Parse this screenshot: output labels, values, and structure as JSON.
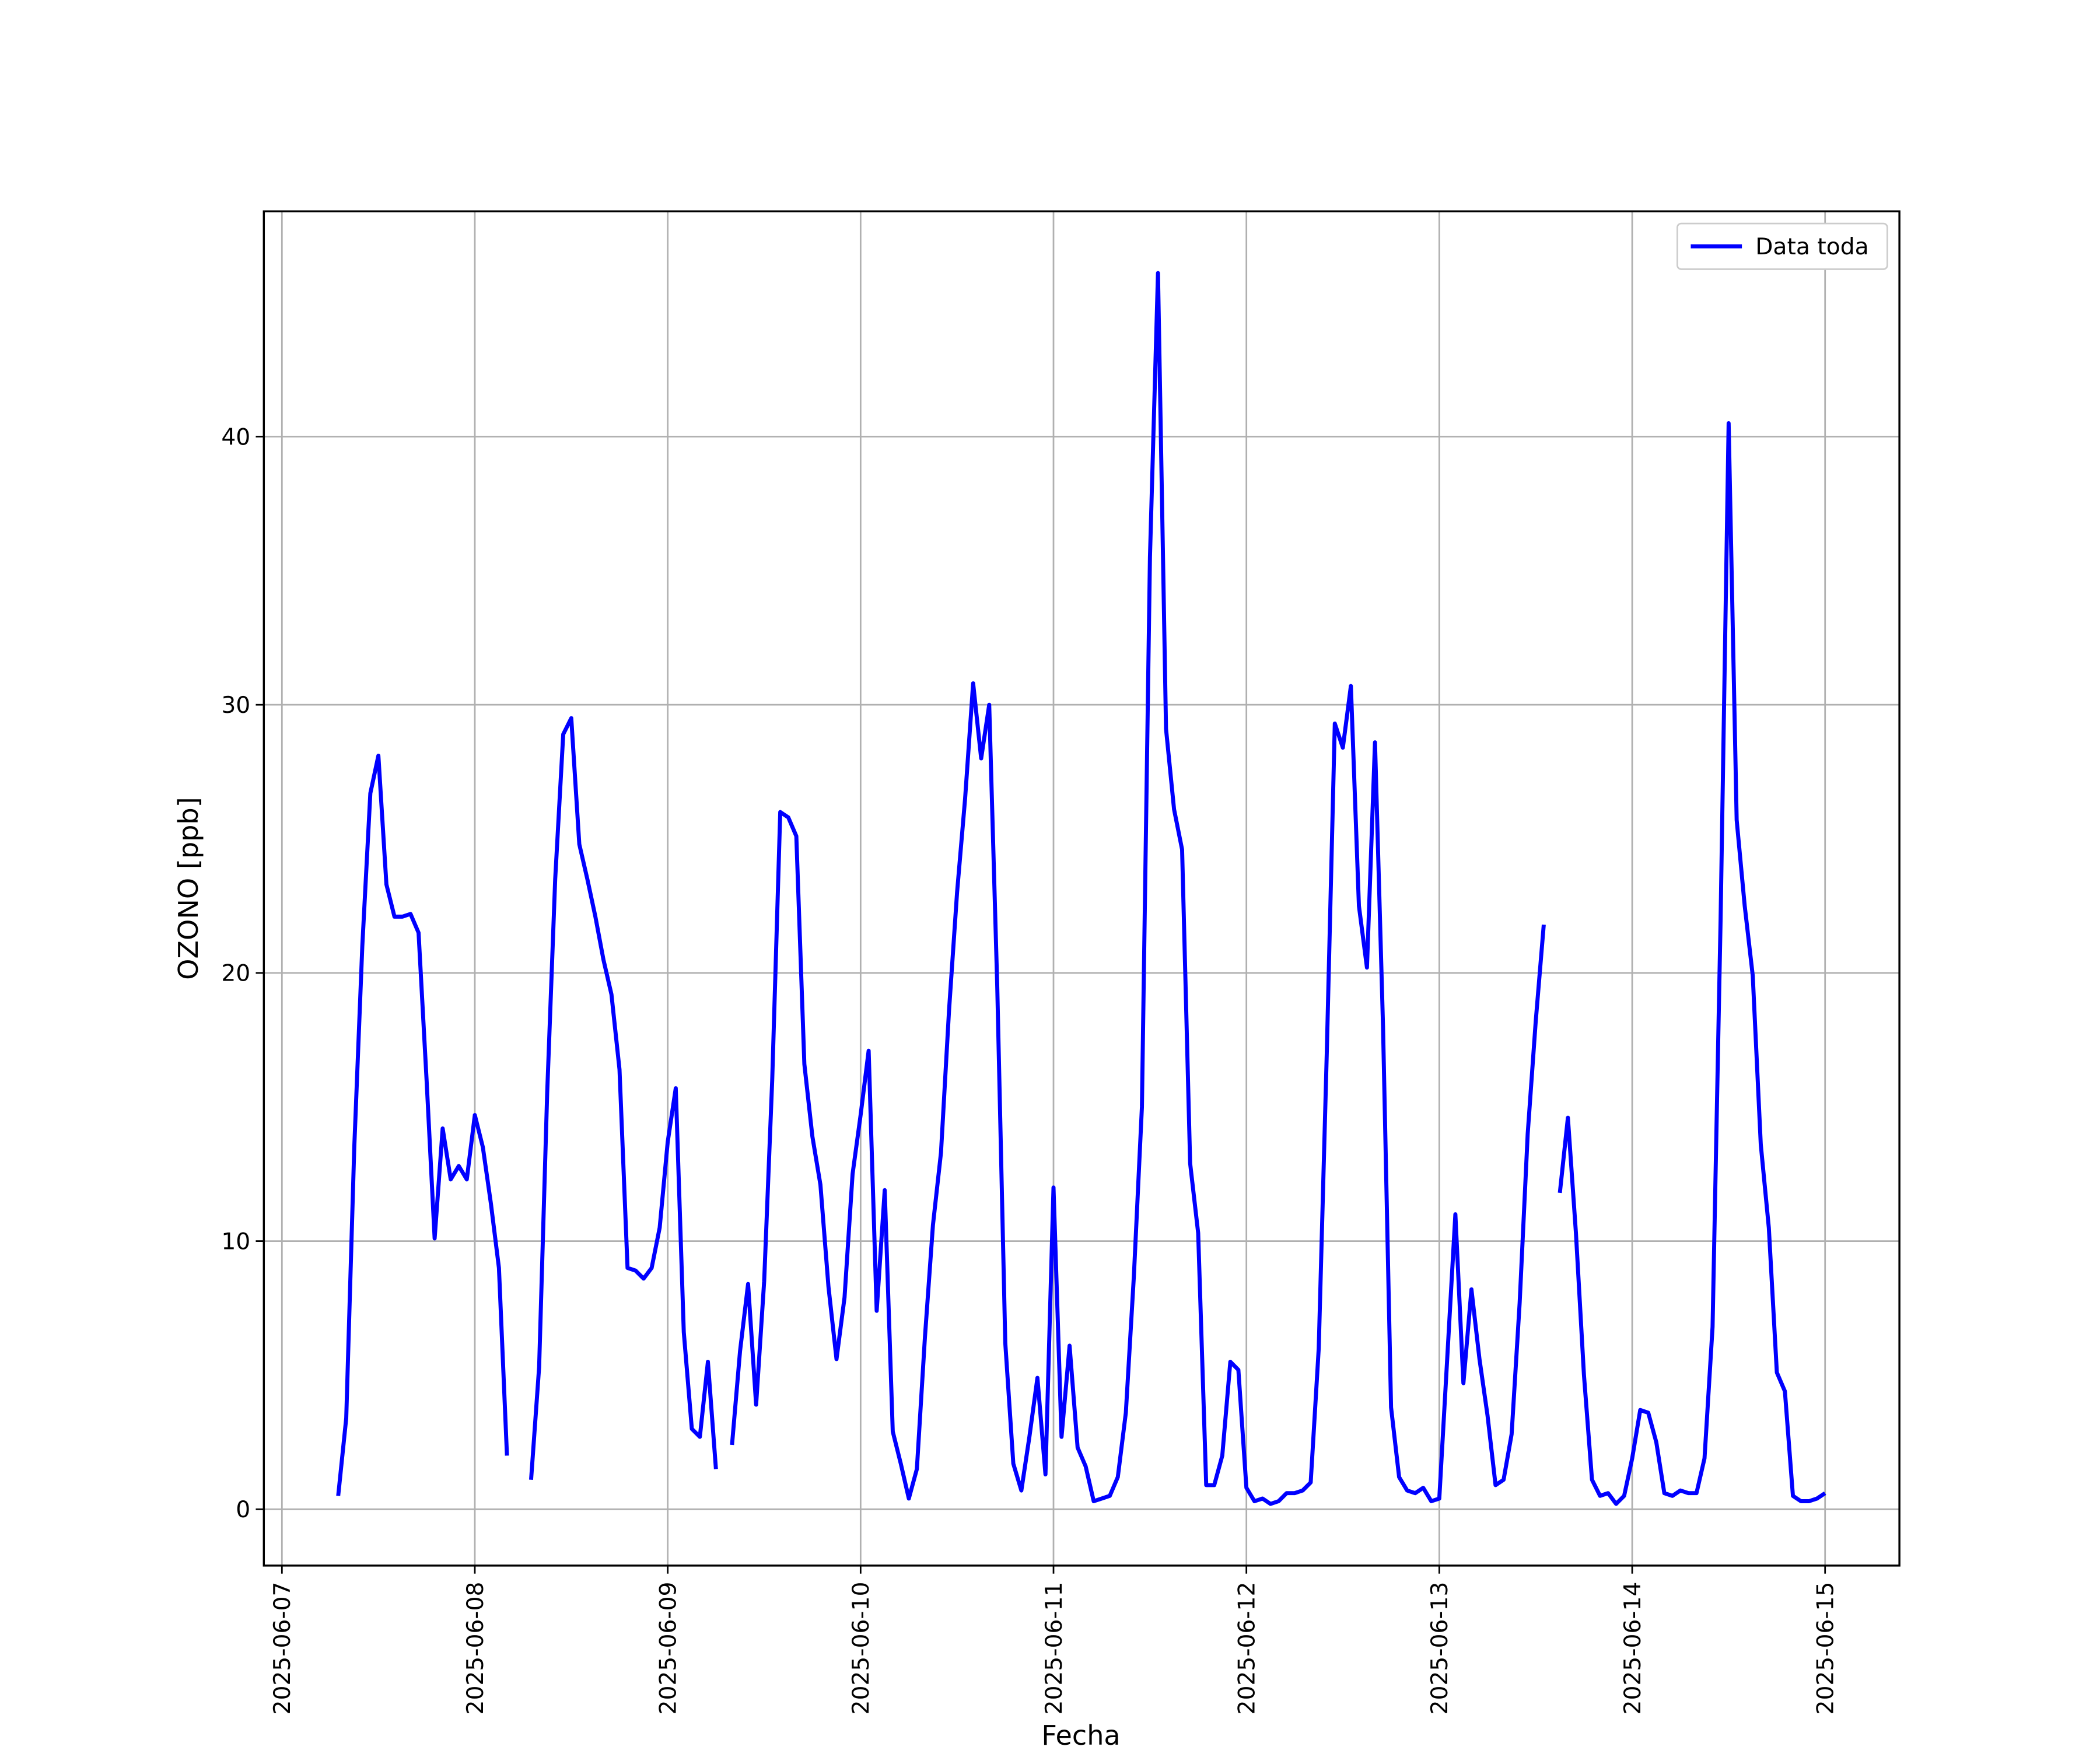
{
  "chart_data": {
    "type": "line",
    "xlabel": "Fecha",
    "ylabel": "OZONO [ppb]",
    "legend": "upper right",
    "grid": true,
    "xlim": [
      "2025-06-06 21:45",
      "2025-06-15 09:15"
    ],
    "xticks": [
      "2025-06-07",
      "2025-06-08",
      "2025-06-09",
      "2025-06-10",
      "2025-06-11",
      "2025-06-12",
      "2025-06-13",
      "2025-06-14",
      "2025-06-15"
    ],
    "ylim": [
      -2.1,
      48.4
    ],
    "yticks": [
      0,
      10,
      20,
      30,
      40
    ],
    "x": [
      "2025-06-07 07:00",
      "2025-06-07 08:00",
      "2025-06-07 09:00",
      "2025-06-07 10:00",
      "2025-06-07 11:00",
      "2025-06-07 12:00",
      "2025-06-07 13:00",
      "2025-06-07 14:00",
      "2025-06-07 15:00",
      "2025-06-07 16:00",
      "2025-06-07 17:00",
      "2025-06-07 18:00",
      "2025-06-07 19:00",
      "2025-06-07 20:00",
      "2025-06-07 21:00",
      "2025-06-07 22:00",
      "2025-06-07 23:00",
      "2025-06-08 00:00",
      "2025-06-08 01:00",
      "2025-06-08 02:00",
      "2025-06-08 03:00",
      "2025-06-08 04:00",
      "2025-06-08 05:00",
      "2025-06-08 06:00",
      "2025-06-08 07:00",
      "2025-06-08 08:00",
      "2025-06-08 09:00",
      "2025-06-08 10:00",
      "2025-06-08 11:00",
      "2025-06-08 12:00",
      "2025-06-08 13:00",
      "2025-06-08 14:00",
      "2025-06-08 15:00",
      "2025-06-08 16:00",
      "2025-06-08 17:00",
      "2025-06-08 18:00",
      "2025-06-08 19:00",
      "2025-06-08 20:00",
      "2025-06-08 21:00",
      "2025-06-08 22:00",
      "2025-06-08 23:00",
      "2025-06-09 00:00",
      "2025-06-09 01:00",
      "2025-06-09 02:00",
      "2025-06-09 03:00",
      "2025-06-09 04:00",
      "2025-06-09 05:00",
      "2025-06-09 06:00",
      "2025-06-09 07:00",
      "2025-06-09 08:00",
      "2025-06-09 09:00",
      "2025-06-09 10:00",
      "2025-06-09 11:00",
      "2025-06-09 12:00",
      "2025-06-09 13:00",
      "2025-06-09 14:00",
      "2025-06-09 15:00",
      "2025-06-09 16:00",
      "2025-06-09 17:00",
      "2025-06-09 18:00",
      "2025-06-09 19:00",
      "2025-06-09 20:00",
      "2025-06-09 21:00",
      "2025-06-09 22:00",
      "2025-06-09 23:00",
      "2025-06-10 00:00",
      "2025-06-10 01:00",
      "2025-06-10 02:00",
      "2025-06-10 03:00",
      "2025-06-10 04:00",
      "2025-06-10 05:00",
      "2025-06-10 06:00",
      "2025-06-10 07:00",
      "2025-06-10 08:00",
      "2025-06-10 09:00",
      "2025-06-10 10:00",
      "2025-06-10 11:00",
      "2025-06-10 12:00",
      "2025-06-10 13:00",
      "2025-06-10 14:00",
      "2025-06-10 15:00",
      "2025-06-10 16:00",
      "2025-06-10 17:00",
      "2025-06-10 18:00",
      "2025-06-10 19:00",
      "2025-06-10 20:00",
      "2025-06-10 21:00",
      "2025-06-10 22:00",
      "2025-06-10 23:00",
      "2025-06-11 00:00",
      "2025-06-11 01:00",
      "2025-06-11 02:00",
      "2025-06-11 03:00",
      "2025-06-11 04:00",
      "2025-06-11 05:00",
      "2025-06-11 06:00",
      "2025-06-11 07:00",
      "2025-06-11 08:00",
      "2025-06-11 09:00",
      "2025-06-11 10:00",
      "2025-06-11 11:00",
      "2025-06-11 12:00",
      "2025-06-11 13:00",
      "2025-06-11 14:00",
      "2025-06-11 15:00",
      "2025-06-11 16:00",
      "2025-06-11 17:00",
      "2025-06-11 18:00",
      "2025-06-11 19:00",
      "2025-06-11 20:00",
      "2025-06-11 21:00",
      "2025-06-11 22:00",
      "2025-06-11 23:00",
      "2025-06-12 00:00",
      "2025-06-12 01:00",
      "2025-06-12 02:00",
      "2025-06-12 03:00",
      "2025-06-12 04:00",
      "2025-06-12 05:00",
      "2025-06-12 06:00",
      "2025-06-12 07:00",
      "2025-06-12 08:00",
      "2025-06-12 09:00",
      "2025-06-12 10:00",
      "2025-06-12 11:00",
      "2025-06-12 12:00",
      "2025-06-12 13:00",
      "2025-06-12 14:00",
      "2025-06-12 15:00",
      "2025-06-12 16:00",
      "2025-06-12 17:00",
      "2025-06-12 18:00",
      "2025-06-12 19:00",
      "2025-06-12 20:00",
      "2025-06-12 21:00",
      "2025-06-12 22:00",
      "2025-06-12 23:00",
      "2025-06-13 00:00",
      "2025-06-13 01:00",
      "2025-06-13 02:00",
      "2025-06-13 03:00",
      "2025-06-13 04:00",
      "2025-06-13 05:00",
      "2025-06-13 06:00",
      "2025-06-13 07:00",
      "2025-06-13 08:00",
      "2025-06-13 09:00",
      "2025-06-13 10:00",
      "2025-06-13 11:00",
      "2025-06-13 12:00",
      "2025-06-13 13:00",
      "2025-06-13 14:00",
      "2025-06-13 15:00",
      "2025-06-13 16:00",
      "2025-06-13 17:00",
      "2025-06-13 18:00",
      "2025-06-13 19:00",
      "2025-06-13 20:00",
      "2025-06-13 21:00",
      "2025-06-13 22:00",
      "2025-06-13 23:00",
      "2025-06-14 00:00",
      "2025-06-14 01:00",
      "2025-06-14 02:00",
      "2025-06-14 03:00",
      "2025-06-14 04:00",
      "2025-06-14 05:00",
      "2025-06-14 06:00",
      "2025-06-14 07:00",
      "2025-06-14 08:00",
      "2025-06-14 09:00",
      "2025-06-14 10:00",
      "2025-06-14 11:00",
      "2025-06-14 12:00",
      "2025-06-14 13:00",
      "2025-06-14 14:00",
      "2025-06-14 15:00",
      "2025-06-14 16:00",
      "2025-06-14 17:00",
      "2025-06-14 18:00",
      "2025-06-14 19:00",
      "2025-06-14 20:00",
      "2025-06-14 21:00",
      "2025-06-14 22:00",
      "2025-06-14 23:00",
      "2025-06-15 00:00"
    ],
    "series": [
      {
        "name": "Data toda",
        "color": "#0000ff",
        "values": [
          0.5,
          3.4,
          13.5,
          21,
          26.7,
          28.1,
          23.3,
          22.1,
          22.1,
          22.2,
          21.5,
          16,
          10.1,
          14.2,
          12.3,
          12.8,
          12.3,
          14.7,
          13.5,
          11.4,
          9,
          2,
          null,
          null,
          1.1,
          5.3,
          15.5,
          23.5,
          28.9,
          29.5,
          24.8,
          23.5,
          22.1,
          20.5,
          19.2,
          16.4,
          9,
          8.9,
          8.6,
          9,
          10.5,
          13.7,
          15.7,
          6.6,
          3,
          2.7,
          5.5,
          1.5,
          null,
          2.4,
          5.9,
          8.4,
          3.9,
          8.5,
          16,
          26,
          25.8,
          25.1,
          16.6,
          13.9,
          12.1,
          8.3,
          5.6,
          7.9,
          12.5,
          14.7,
          17.1,
          7.4,
          11.9,
          2.9,
          1.7,
          0.4,
          1.5,
          6.4,
          10.6,
          13.3,
          18.6,
          23,
          26.5,
          30.8,
          28,
          30,
          19.5,
          6.2,
          1.7,
          0.7,
          2.7,
          4.9,
          1.3,
          12,
          2.7,
          6.1,
          2.3,
          1.6,
          0.3,
          0.4,
          0.5,
          1.2,
          3.6,
          8.7,
          15,
          35.5,
          46.1,
          29.1,
          26.1,
          24.6,
          12.9,
          10.3,
          0.9,
          0.9,
          2,
          5.5,
          5.2,
          0.8,
          0.3,
          0.4,
          0.2,
          0.3,
          0.6,
          0.6,
          0.7,
          1,
          6,
          17,
          29.3,
          28.4,
          30.7,
          22.5,
          20.2,
          28.6,
          18,
          3.8,
          1.2,
          0.7,
          0.6,
          0.8,
          0.3,
          0.4,
          5.7,
          11,
          4.7,
          8.2,
          5.6,
          3.5,
          0.9,
          1.1,
          2.8,
          7.7,
          14,
          18.2,
          21.8,
          null,
          11.8,
          14.6,
          10.3,
          5,
          1.1,
          0.5,
          0.6,
          0.2,
          0.5,
          1.9,
          3.7,
          3.6,
          2.5,
          0.6,
          0.5,
          0.7,
          0.6,
          0.6,
          1.9,
          6.8,
          22,
          40.5,
          25.7,
          22.5,
          19.9,
          13.6,
          10.5,
          5.1,
          4.4,
          0.5,
          0.3,
          0.3,
          0.4,
          0.6
        ]
      }
    ]
  }
}
